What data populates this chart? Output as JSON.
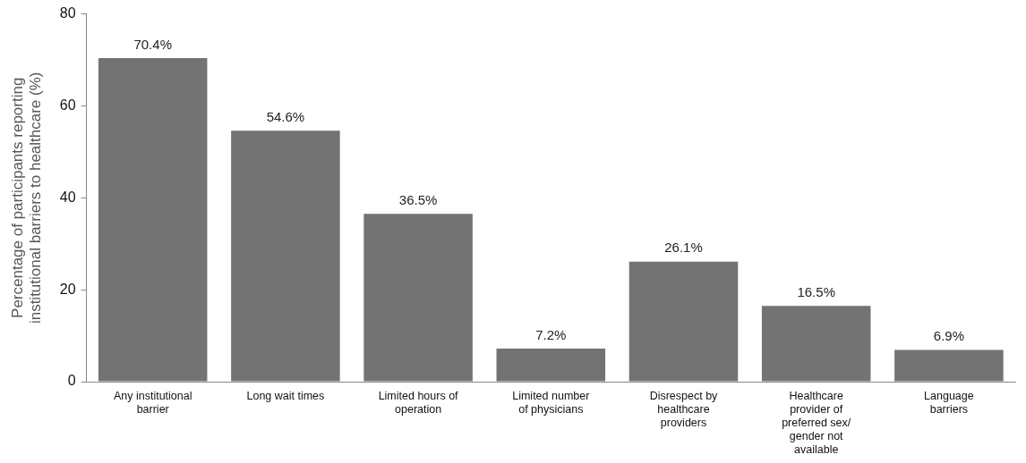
{
  "chart_data": {
    "type": "bar",
    "ylabel": "Percentage of participants reporting institutional barriers to healthcare (%)",
    "categories": [
      "Any institutional barrier",
      "Long wait times",
      "Limited hours of operation",
      "Limited number of physicians",
      "Disrespect by healthcare providers",
      "Healthcare provider of preferred sex/ gender not available",
      "Language barriers"
    ],
    "values": [
      70.4,
      54.6,
      36.5,
      7.2,
      26.1,
      16.5,
      6.9
    ],
    "value_labels": [
      "70.4%",
      "54.6%",
      "36.5%",
      "7.2%",
      "26.1%",
      "16.5%",
      "6.9%"
    ],
    "color": "#737373",
    "ylim": [
      0,
      80
    ],
    "yticks": [
      0,
      20,
      40,
      60,
      80
    ],
    "grid": false,
    "legend": false
  }
}
